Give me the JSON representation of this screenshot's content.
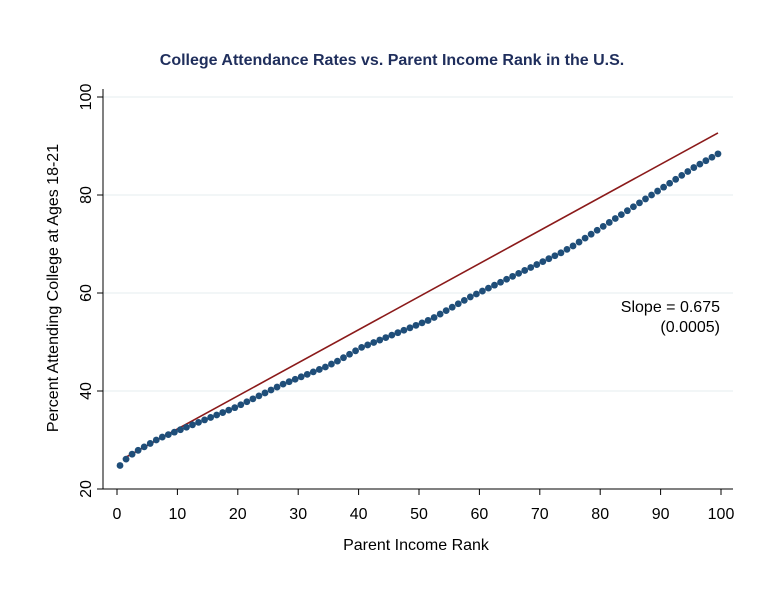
{
  "chart_data": {
    "type": "scatter",
    "title": "College Attendance Rates vs. Parent Income Rank in the U.S.",
    "xlabel": "Parent Income Rank",
    "ylabel": "Percent Attending College at Ages 18-21",
    "xlim": [
      0,
      100
    ],
    "ylim": [
      20,
      100
    ],
    "xticks": [
      0,
      10,
      20,
      30,
      40,
      50,
      60,
      70,
      80,
      90,
      100
    ],
    "yticks": [
      20,
      40,
      60,
      80,
      100
    ],
    "grid": true,
    "series": [
      {
        "marker_color": "#1f4e79",
        "x": [
          0.5,
          1.5,
          2.5,
          3.5,
          4.5,
          5.5,
          6.5,
          7.5,
          8.5,
          9.5,
          10.5,
          11.5,
          12.5,
          13.5,
          14.5,
          15.5,
          16.5,
          17.5,
          18.5,
          19.5,
          20.5,
          21.5,
          22.5,
          23.5,
          24.5,
          25.5,
          26.5,
          27.5,
          28.5,
          29.5,
          30.5,
          31.5,
          32.5,
          33.5,
          34.5,
          35.5,
          36.5,
          37.5,
          38.5,
          39.5,
          40.5,
          41.5,
          42.5,
          43.5,
          44.5,
          45.5,
          46.5,
          47.5,
          48.5,
          49.5,
          50.5,
          51.5,
          52.5,
          53.5,
          54.5,
          55.5,
          56.5,
          57.5,
          58.5,
          59.5,
          60.5,
          61.5,
          62.5,
          63.5,
          64.5,
          65.5,
          66.5,
          67.5,
          68.5,
          69.5,
          70.5,
          71.5,
          72.5,
          73.5,
          74.5,
          75.5,
          76.5,
          77.5,
          78.5,
          79.5,
          80.5,
          81.5,
          82.5,
          83.5,
          84.5,
          85.5,
          86.5,
          87.5,
          88.5,
          89.5,
          90.5,
          91.5,
          92.5,
          93.5,
          94.5,
          95.5,
          96.5,
          97.5,
          98.5,
          99.5
        ],
        "y": [
          24.8,
          26.1,
          27.1,
          27.9,
          28.6,
          29.3,
          30.0,
          30.6,
          31.1,
          31.6,
          32.1,
          32.6,
          33.1,
          33.6,
          34.1,
          34.6,
          35.1,
          35.6,
          36.1,
          36.6,
          37.2,
          37.8,
          38.4,
          39.0,
          39.6,
          40.2,
          40.8,
          41.4,
          41.9,
          42.4,
          42.9,
          43.4,
          43.9,
          44.4,
          44.9,
          45.5,
          46.1,
          46.8,
          47.5,
          48.2,
          48.9,
          49.4,
          49.9,
          50.4,
          50.9,
          51.4,
          51.9,
          52.4,
          52.9,
          53.4,
          53.9,
          54.4,
          55.0,
          55.7,
          56.4,
          57.1,
          57.8,
          58.5,
          59.2,
          59.8,
          60.4,
          61.0,
          61.6,
          62.2,
          62.8,
          63.4,
          64.0,
          64.6,
          65.2,
          65.8,
          66.4,
          67.0,
          67.6,
          68.2,
          68.9,
          69.6,
          70.4,
          71.2,
          72.0,
          72.8,
          73.6,
          74.4,
          75.2,
          76.0,
          76.8,
          77.6,
          78.4,
          79.2,
          80.0,
          80.8,
          81.6,
          82.4,
          83.2,
          84.0,
          84.8,
          85.6,
          86.3,
          87.0,
          87.7,
          88.4
        ]
      }
    ],
    "fit_line": {
      "slope": 0.675,
      "intercept": 25.5,
      "x_range": [
        1,
        99.5
      ],
      "color": "#8b1a1a"
    },
    "annotations": [
      "Slope = 0.675",
      "(0.0005)"
    ]
  }
}
